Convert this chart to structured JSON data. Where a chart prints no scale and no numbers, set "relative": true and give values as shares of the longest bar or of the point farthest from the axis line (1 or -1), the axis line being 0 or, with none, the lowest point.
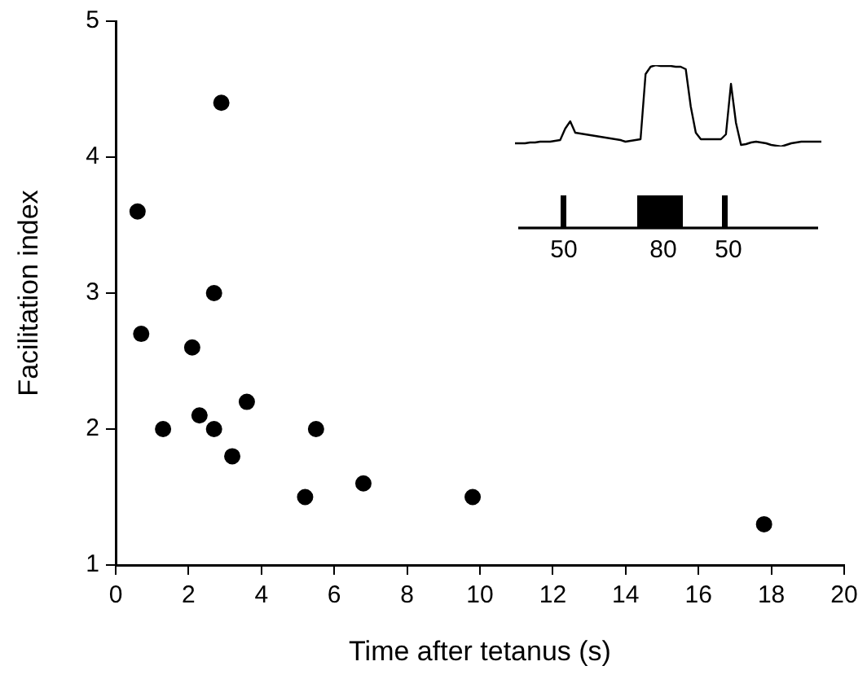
{
  "chart_data": [
    {
      "type": "scatter",
      "xlabel": "Time after tetanus (s)",
      "ylabel": "Facilitation index",
      "x": [
        0.6,
        0.7,
        1.3,
        2.1,
        2.3,
        2.7,
        2.7,
        2.9,
        3.2,
        3.6,
        5.2,
        5.5,
        6.8,
        9.8,
        17.8
      ],
      "series": [
        {
          "color": "#000000",
          "values": [
            3.6,
            2.7,
            2.0,
            2.6,
            2.1,
            3.0,
            2.0,
            4.4,
            1.8,
            2.2,
            1.5,
            2.0,
            1.6,
            1.5,
            1.3
          ]
        }
      ],
      "xlim": [
        0,
        20
      ],
      "xticks": [
        0,
        2,
        4,
        6,
        8,
        10,
        12,
        14,
        16,
        18,
        20
      ],
      "ylim": [
        1,
        5
      ],
      "yticks": [
        1,
        2,
        3,
        4,
        5
      ],
      "marker": "circle",
      "grid": false,
      "legend": false
    },
    {
      "type": "line",
      "relative": true,
      "marker": "none",
      "line_style": "solid",
      "categories": [
        null,
        null,
        null,
        null,
        null,
        null,
        null,
        null,
        null,
        null,
        null,
        null,
        null,
        null,
        null,
        null,
        null,
        null,
        null,
        null,
        null,
        null,
        null,
        null,
        null,
        null,
        null,
        null,
        null,
        null,
        null,
        null,
        null,
        null,
        null,
        null,
        null,
        null,
        null,
        null,
        null,
        null,
        null,
        null,
        null,
        null,
        null,
        null,
        null,
        null,
        null,
        null,
        null,
        null,
        null,
        null,
        null,
        null,
        null,
        null,
        null,
        null
      ],
      "series": [
        {
          "color": "#000000",
          "values": [
            0.04,
            0.04,
            0.04,
            0.05,
            0.05,
            0.06,
            0.06,
            0.06,
            0.07,
            0.08,
            0.22,
            0.31,
            0.17,
            0.16,
            0.15,
            0.14,
            0.13,
            0.12,
            0.11,
            0.1,
            0.09,
            0.08,
            0.06,
            0.07,
            0.08,
            0.09,
            0.89,
            0.98,
            1,
            0.99,
            0.99,
            0.99,
            0.98,
            0.98,
            0.95,
            0.49,
            0.17,
            0.09,
            0.09,
            0.09,
            0.09,
            0.09,
            0.15,
            0.77,
            0.29,
            0.02,
            0.03,
            0.05,
            0.06,
            0.05,
            0.04,
            0.02,
            0.01,
            0,
            0.02,
            0.04,
            0.05,
            0.06,
            0.06,
            0.06,
            0.06,
            0.06
          ]
        }
      ],
      "annotations": [
        "50",
        "80",
        "50"
      ]
    }
  ]
}
